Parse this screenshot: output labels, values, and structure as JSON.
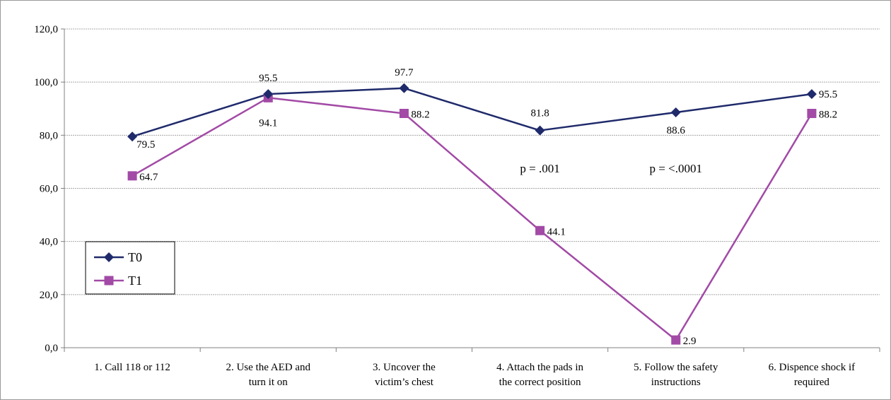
{
  "chart_data": {
    "type": "line",
    "categories": [
      [
        "1. Call 118 or 112"
      ],
      [
        "2. Use the AED and",
        "turn it on"
      ],
      [
        "3. Uncover the",
        "victim’s chest"
      ],
      [
        "4. Attach the pads in",
        "the correct position"
      ],
      [
        "5. Follow the safety",
        "instructions"
      ],
      [
        "6. Dispence shock if",
        "required"
      ]
    ],
    "series": [
      {
        "name": "T0",
        "values": [
          79.5,
          95.5,
          97.7,
          81.8,
          88.6,
          95.5
        ],
        "labels": [
          "79.5",
          "95.5",
          "97.7",
          "81.8",
          "88.6",
          "95.5"
        ],
        "color": "#1f2a6b",
        "marker": "diamond"
      },
      {
        "name": "T1",
        "values": [
          64.7,
          94.1,
          88.2,
          44.1,
          2.9,
          88.2
        ],
        "labels": [
          "64.7",
          "94.1",
          "88.2",
          "44.1",
          "2.9",
          "88.2"
        ],
        "color": "#a24aa6",
        "marker": "square"
      }
    ],
    "ylim": [
      0,
      120
    ],
    "yticks": [
      0,
      20,
      40,
      60,
      80,
      100,
      120
    ],
    "ytick_labels": [
      "0,0",
      "20,0",
      "40,0",
      "60,0",
      "80,0",
      "100,0",
      "120,0"
    ],
    "grid": true,
    "legend": "left",
    "annotations": [
      {
        "text": "p = .001",
        "category_index": 3
      },
      {
        "text": "p = <.0001",
        "category_index": 4
      }
    ],
    "title": "",
    "xlabel": "",
    "ylabel": ""
  }
}
